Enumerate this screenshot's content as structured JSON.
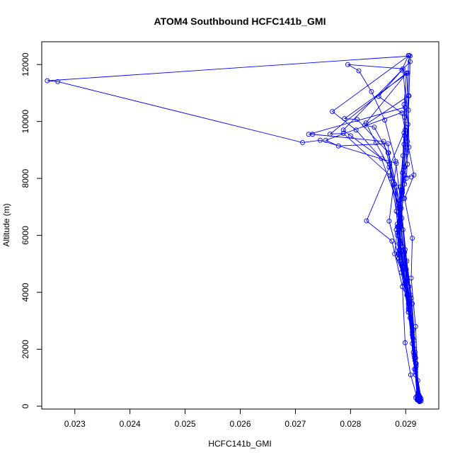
{
  "chart_data": {
    "type": "line",
    "title": "ATOM4 Southbound HCFC141b_GMI",
    "xlabel": "HCFC141b_GMI",
    "ylabel": "Altitude (m)",
    "xlim": [
      0.0224,
      0.0296
    ],
    "ylim": [
      -100,
      12800
    ],
    "xticks": [
      "0.023",
      "0.024",
      "0.025",
      "0.026",
      "0.027",
      "0.028",
      "0.029"
    ],
    "xtick_values": [
      0.023,
      0.024,
      0.025,
      0.026,
      0.027,
      0.028,
      0.029
    ],
    "yticks": [
      "0",
      "2000",
      "4000",
      "6000",
      "8000",
      "10000",
      "12000"
    ],
    "ytick_values": [
      0,
      2000,
      4000,
      6000,
      8000,
      10000,
      12000
    ],
    "grid": false,
    "legend": "none",
    "series_color": "#0000FF",
    "markers": "open-circle",
    "series": [
      {
        "values": [
          [
            0.02905,
            12320
          ],
          [
            0.02893,
            11800
          ],
          [
            0.02851,
            10880
          ],
          [
            0.02893,
            10300
          ],
          [
            0.02915,
            8120
          ],
          [
            0.02898,
            7300
          ],
          [
            0.02912,
            5900
          ],
          [
            0.0291,
            4500
          ],
          [
            0.02918,
            2800
          ],
          [
            0.02922,
            900
          ],
          [
            0.02918,
            300
          ],
          [
            0.02925,
            160
          ],
          [
            0.02925,
            220
          ],
          [
            0.02918,
            1200
          ],
          [
            0.0291,
            3800
          ],
          [
            0.02898,
            5400
          ],
          [
            0.02885,
            6300
          ],
          [
            0.02894,
            7500
          ],
          [
            0.02899,
            9100
          ],
          [
            0.02897,
            10600
          ],
          [
            0.02902,
            11700
          ],
          [
            0.02828,
            9950
          ],
          [
            0.02846,
            9250
          ],
          [
            0.0287,
            8400
          ],
          [
            0.0289,
            7000
          ],
          [
            0.02895,
            5600
          ],
          [
            0.02906,
            4200
          ],
          [
            0.02916,
            2000
          ],
          [
            0.02922,
            400
          ],
          [
            0.02928,
            180
          ],
          [
            0.02928,
            260
          ],
          [
            0.02915,
            1800
          ],
          [
            0.02905,
            3300
          ],
          [
            0.02892,
            4700
          ],
          [
            0.02886,
            5350
          ],
          [
            0.02893,
            6600
          ],
          [
            0.02897,
            8400
          ],
          [
            0.02904,
            9900
          ],
          [
            0.02895,
            11850
          ],
          [
            0.02795,
            12000
          ],
          [
            0.02815,
            11780
          ],
          [
            0.02838,
            11050
          ],
          [
            0.02862,
            10050
          ],
          [
            0.02882,
            8600
          ],
          [
            0.02892,
            6950
          ],
          [
            0.02902,
            5100
          ],
          [
            0.02912,
            3600
          ],
          [
            0.02919,
            1400
          ],
          [
            0.02926,
            320
          ],
          [
            0.02924,
            200
          ],
          [
            0.02913,
            2700
          ],
          [
            0.02902,
            4400
          ],
          [
            0.0289,
            5800
          ],
          [
            0.02889,
            7100
          ],
          [
            0.02901,
            8000
          ],
          [
            0.02903,
            8500
          ],
          [
            0.02906,
            10900
          ],
          [
            0.02908,
            12300
          ],
          [
            0.0225,
            11430
          ],
          [
            0.02269,
            11400
          ],
          [
            0.02713,
            9260
          ],
          [
            0.02745,
            9340
          ],
          [
            0.02883,
            8530
          ],
          [
            0.0287,
            6500
          ],
          [
            0.02888,
            5200
          ],
          [
            0.02905,
            3600
          ],
          [
            0.02918,
            1100
          ],
          [
            0.02923,
            300
          ],
          [
            0.02925,
            180
          ],
          [
            0.02915,
            2300
          ],
          [
            0.029,
            4400
          ],
          [
            0.02888,
            5700
          ],
          [
            0.02883,
            6200
          ],
          [
            0.02893,
            7400
          ],
          [
            0.02895,
            8800
          ],
          [
            0.02897,
            9600
          ],
          [
            0.02899,
            10500
          ],
          [
            0.02724,
            9550
          ],
          [
            0.02731,
            9550
          ],
          [
            0.0286,
            9300
          ],
          [
            0.0288,
            7800
          ],
          [
            0.02885,
            6400
          ],
          [
            0.02893,
            5000
          ],
          [
            0.02905,
            3400
          ],
          [
            0.02917,
            1600
          ],
          [
            0.02924,
            400
          ],
          [
            0.02921,
            250
          ],
          [
            0.02912,
            2600
          ],
          [
            0.029,
            4300
          ],
          [
            0.02888,
            5300
          ],
          [
            0.02885,
            6000
          ],
          [
            0.02892,
            7600
          ],
          [
            0.02897,
            9200
          ],
          [
            0.02898,
            10150
          ],
          [
            0.02901,
            11700
          ],
          [
            0.02763,
            9560
          ],
          [
            0.02787,
            9580
          ],
          [
            0.02872,
            8100
          ],
          [
            0.02895,
            6200
          ],
          [
            0.02901,
            4800
          ],
          [
            0.02908,
            3100
          ],
          [
            0.02918,
            1300
          ],
          [
            0.02926,
            250
          ],
          [
            0.02925,
            170
          ],
          [
            0.02917,
            1900
          ],
          [
            0.02905,
            3700
          ],
          [
            0.02891,
            5600
          ],
          [
            0.02888,
            6700
          ],
          [
            0.02894,
            8200
          ],
          [
            0.02899,
            9700
          ],
          [
            0.02906,
            12320
          ],
          [
            0.02767,
            10350
          ],
          [
            0.0281,
            9700
          ],
          [
            0.02856,
            8700
          ],
          [
            0.02888,
            7000
          ],
          [
            0.02896,
            5300
          ],
          [
            0.02907,
            3800
          ],
          [
            0.02919,
            1500
          ],
          [
            0.02926,
            320
          ],
          [
            0.02924,
            200
          ],
          [
            0.02913,
            2400
          ],
          [
            0.029,
            4400
          ],
          [
            0.0288,
            5350
          ],
          [
            0.02889,
            6900
          ],
          [
            0.02898,
            8400
          ],
          [
            0.02906,
            9100
          ],
          [
            0.02904,
            11700
          ],
          [
            0.02789,
            10100
          ],
          [
            0.02812,
            10070
          ],
          [
            0.02869,
            8900
          ],
          [
            0.02889,
            7200
          ],
          [
            0.02899,
            5500
          ],
          [
            0.02909,
            3900
          ],
          [
            0.02918,
            1700
          ],
          [
            0.02924,
            350
          ],
          [
            0.02922,
            210
          ],
          [
            0.02912,
            2200
          ],
          [
            0.02898,
            4300
          ],
          [
            0.02887,
            5350
          ],
          [
            0.02885,
            6100
          ],
          [
            0.02896,
            7300
          ],
          [
            0.02902,
            8900
          ],
          [
            0.02905,
            10400
          ],
          [
            0.02755,
            9340
          ],
          [
            0.02778,
            9140
          ],
          [
            0.02868,
            9220
          ],
          [
            0.02873,
            8000
          ],
          [
            0.02883,
            6850
          ],
          [
            0.02889,
            5500
          ],
          [
            0.02904,
            3900
          ],
          [
            0.02917,
            1800
          ],
          [
            0.02925,
            320
          ],
          [
            0.02924,
            230
          ],
          [
            0.02916,
            1300
          ],
          [
            0.02905,
            3300
          ],
          [
            0.02894,
            4900
          ],
          [
            0.0289,
            6300
          ],
          [
            0.02898,
            7800
          ],
          [
            0.02903,
            9300
          ],
          [
            0.02908,
            12100
          ],
          [
            0.02787,
            9700
          ],
          [
            0.028,
            9500
          ],
          [
            0.02871,
            8500
          ],
          [
            0.0289,
            6700
          ],
          [
            0.02898,
            5000
          ],
          [
            0.02906,
            3400
          ],
          [
            0.02918,
            1500
          ],
          [
            0.02926,
            260
          ],
          [
            0.02926,
            180
          ],
          [
            0.02917,
            1700
          ],
          [
            0.02905,
            3500
          ],
          [
            0.0289,
            5100
          ],
          [
            0.02886,
            6300
          ],
          [
            0.0289,
            7700
          ],
          [
            0.02898,
            9500
          ],
          [
            0.02905,
            10900
          ],
          [
            0.02826,
            9870
          ],
          [
            0.02843,
            9800
          ],
          [
            0.02868,
            8900
          ],
          [
            0.02883,
            7700
          ],
          [
            0.02891,
            6400
          ],
          [
            0.02899,
            5100
          ],
          [
            0.02906,
            3600
          ],
          [
            0.02916,
            1700
          ],
          [
            0.02924,
            350
          ],
          [
            0.02923,
            210
          ],
          [
            0.02914,
            1900
          ],
          [
            0.02902,
            3900
          ],
          [
            0.0289,
            5500
          ],
          [
            0.02888,
            6700
          ],
          [
            0.02896,
            8300
          ],
          [
            0.02901,
            9800
          ],
          [
            0.02829,
            6510
          ],
          [
            0.02875,
            5800
          ],
          [
            0.02894,
            4200
          ],
          [
            0.02899,
            2230
          ],
          [
            0.02909,
            1100
          ],
          [
            0.0292,
            350
          ],
          [
            0.02921,
            220
          ],
          [
            0.02912,
            2500
          ],
          [
            0.029,
            4100
          ],
          [
            0.0289,
            5700
          ],
          [
            0.02886,
            6800
          ],
          [
            0.02894,
            7600
          ],
          [
            0.02898,
            8100
          ],
          [
            0.0291,
            8050
          ]
        ]
      }
    ]
  }
}
